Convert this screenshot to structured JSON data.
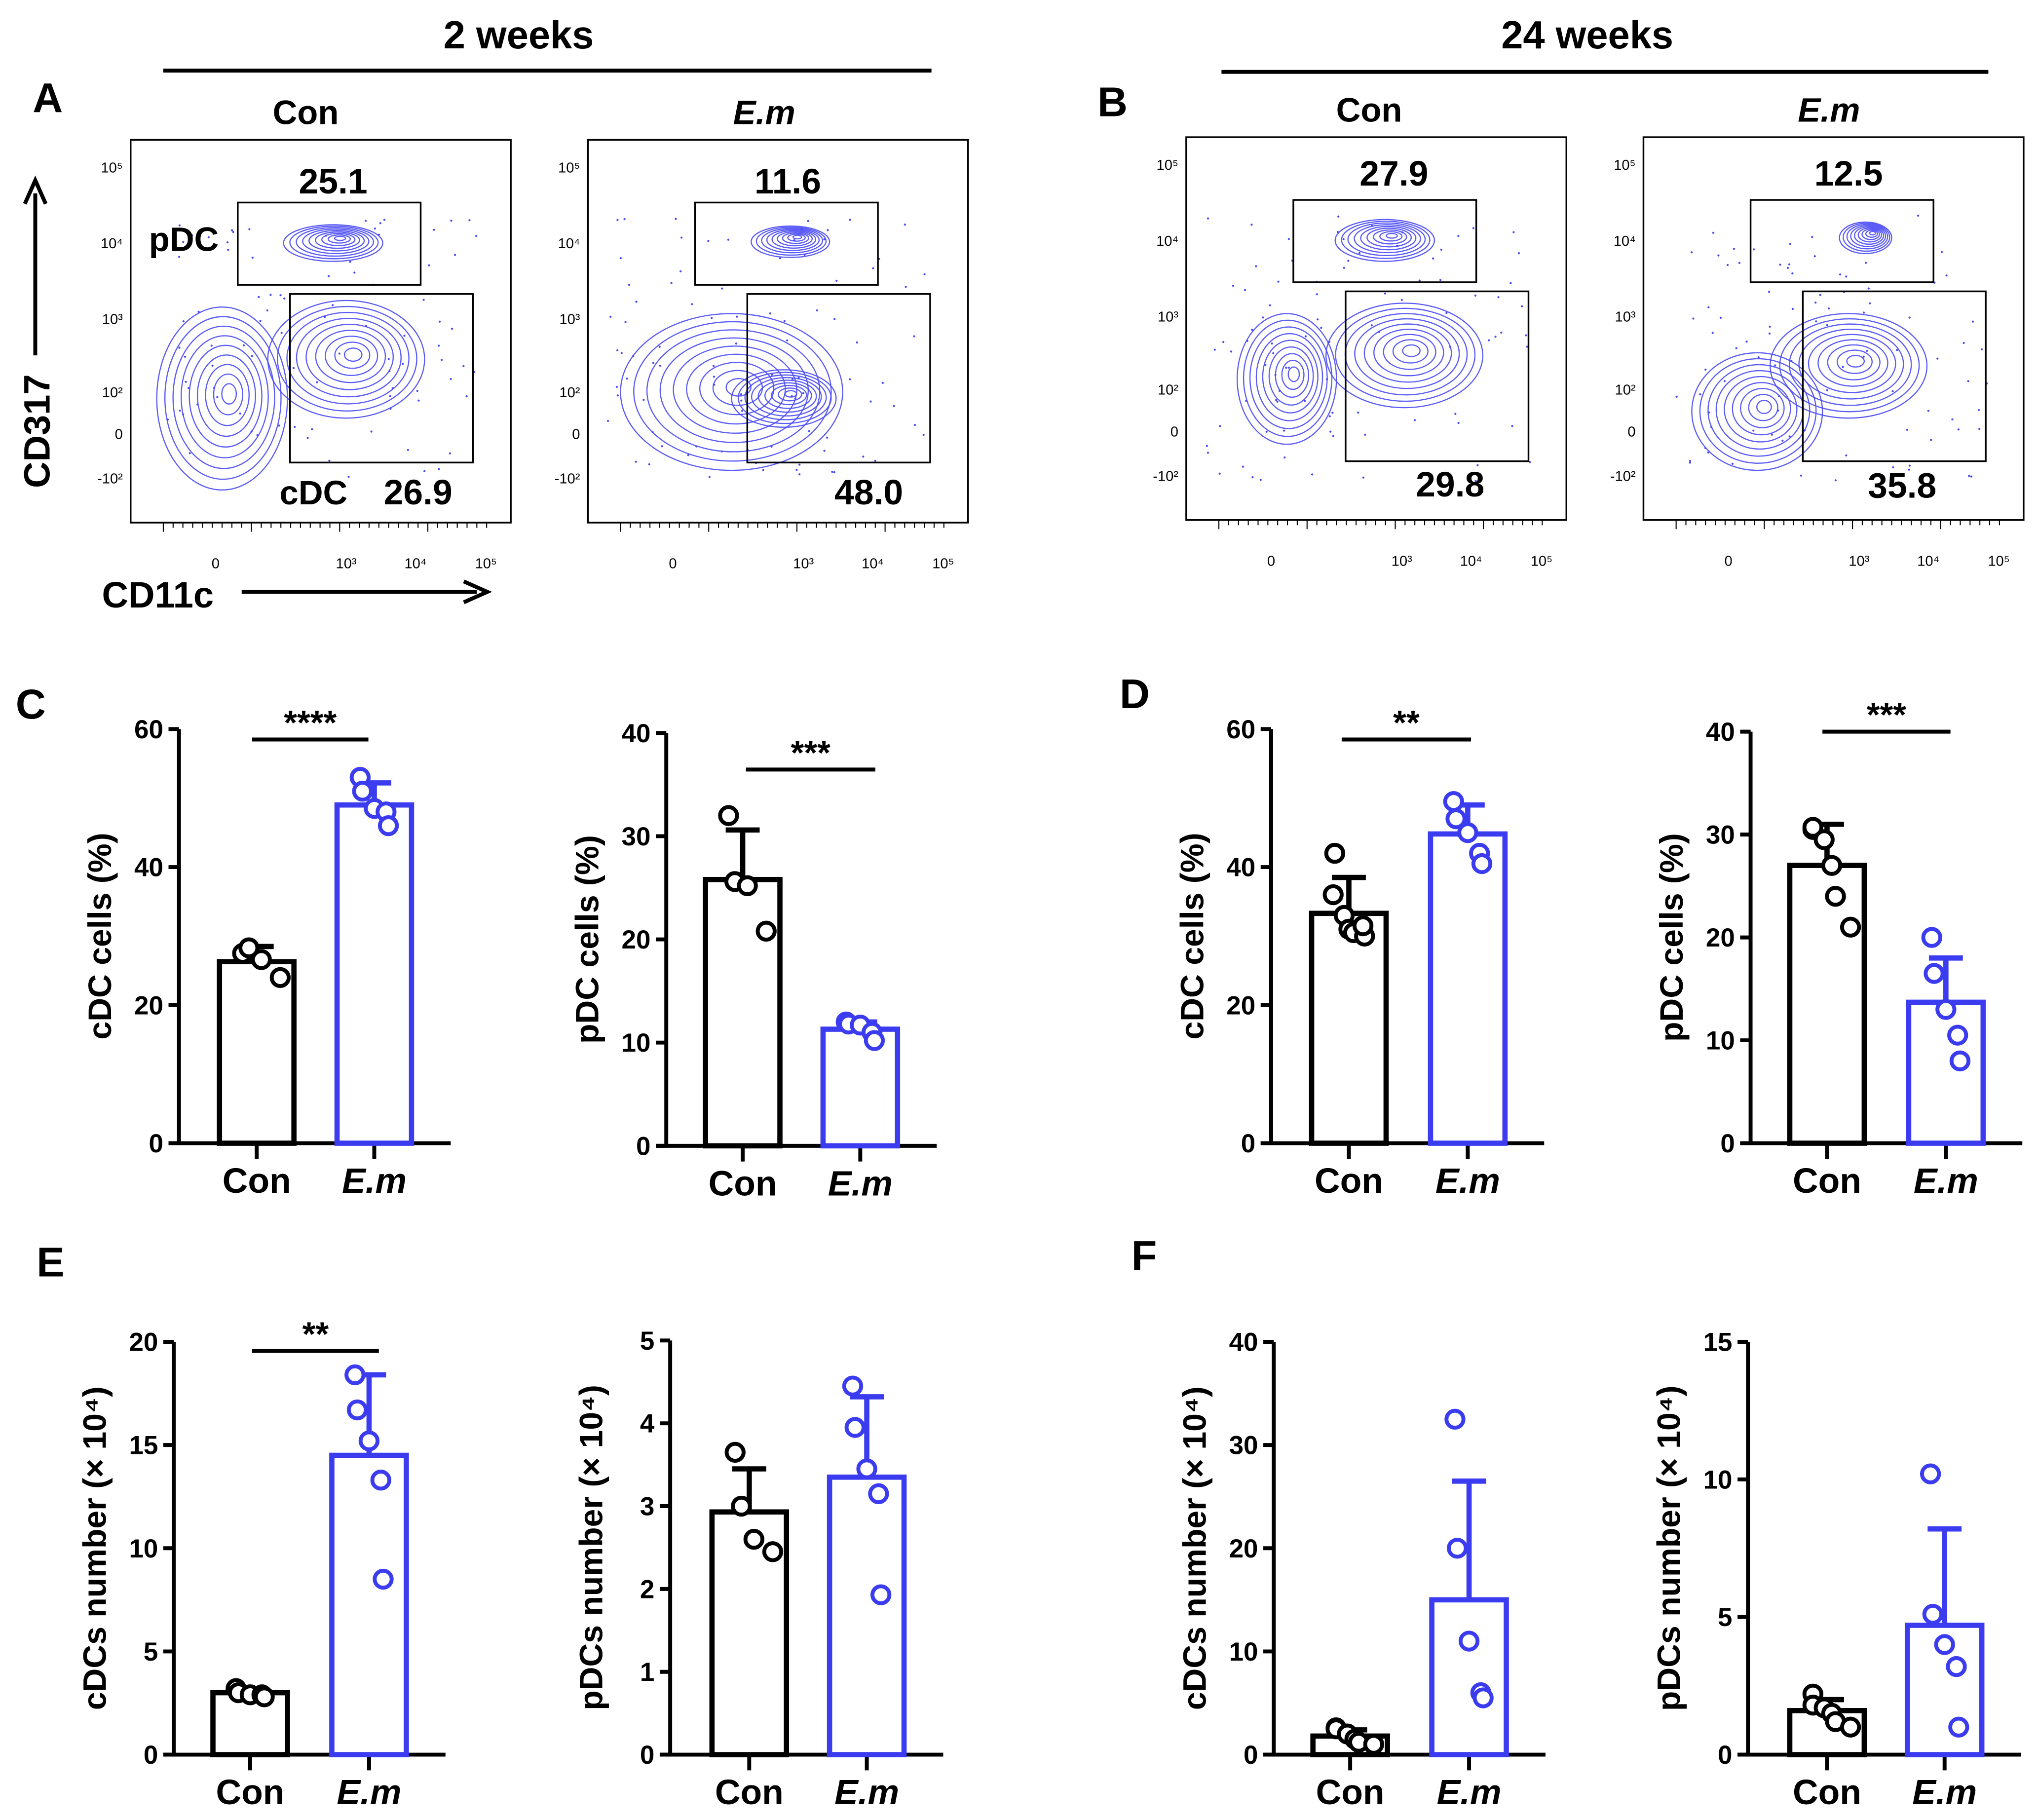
{
  "colors": {
    "con": "#000000",
    "em": "#3b3bf0",
    "contour": "#4a4af5"
  },
  "header": {
    "left_title": "2 weeks",
    "right_title": "24 weeks"
  },
  "panel_letters": [
    "A",
    "B",
    "C",
    "D",
    "E",
    "F"
  ],
  "flow": {
    "y_axis_label": "CD317",
    "x_axis_label": "CD11c",
    "y_ticks": [
      "10⁵",
      "10⁴",
      "10³",
      "10²",
      "0",
      "-10²"
    ],
    "x_ticks": [
      "0",
      "10³",
      "10⁴",
      "10⁵"
    ],
    "gate_labels": {
      "pdc": "pDC",
      "cdc": "cDC"
    },
    "plots": [
      {
        "group": "Con",
        "pdc_pct": "25.1",
        "cdc_pct": "26.9"
      },
      {
        "group": "E.m",
        "pdc_pct": "11.6",
        "cdc_pct": "48.0"
      },
      {
        "group": "Con",
        "pdc_pct": "27.9",
        "cdc_pct": "29.8"
      },
      {
        "group": "E.m",
        "pdc_pct": "12.5",
        "cdc_pct": "35.8"
      }
    ]
  },
  "chart_data": [
    {
      "type": "bar",
      "panel": "C",
      "title": "",
      "ylabel": "cDC cells (%)",
      "categories": [
        "Con",
        "E.m"
      ],
      "ylim": [
        0,
        60
      ],
      "yticks": [
        "0",
        "20",
        "40",
        "60"
      ],
      "significance": "****",
      "series": [
        {
          "name": "Con",
          "mean": 26.3,
          "sd": 2.2,
          "points": [
            27.5,
            28.3,
            26.6,
            24.0
          ]
        },
        {
          "name": "E.m",
          "mean": 49.0,
          "sd": 3.2,
          "points": [
            53.0,
            51.0,
            48.5,
            48.0,
            46.0
          ]
        }
      ]
    },
    {
      "type": "bar",
      "panel": "C",
      "title": "",
      "ylabel": "pDC cells (%)",
      "categories": [
        "Con",
        "E.m"
      ],
      "ylim": [
        0,
        40
      ],
      "yticks": [
        "0",
        "10",
        "20",
        "30",
        "40"
      ],
      "significance": "***",
      "series": [
        {
          "name": "Con",
          "mean": 25.8,
          "sd": 4.8,
          "points": [
            32.0,
            25.6,
            25.2,
            20.8
          ]
        },
        {
          "name": "E.m",
          "mean": 11.3,
          "sd": 0.7,
          "points": [
            12.0,
            11.8,
            11.7,
            11.0,
            10.2
          ]
        }
      ]
    },
    {
      "type": "bar",
      "panel": "D",
      "title": "",
      "ylabel": "cDC cells (%)",
      "categories": [
        "Con",
        "E.m"
      ],
      "ylim": [
        0,
        60
      ],
      "yticks": [
        "0",
        "20",
        "40",
        "60"
      ],
      "significance": "**",
      "series": [
        {
          "name": "Con",
          "mean": 33.3,
          "sd": 5.2,
          "points": [
            42.0,
            36.0,
            33.0,
            31.0,
            30.5,
            30.0,
            31.5
          ]
        },
        {
          "name": "E.m",
          "mean": 44.8,
          "sd": 4.2,
          "points": [
            49.5,
            47.0,
            45.0,
            42.0,
            40.5
          ]
        }
      ]
    },
    {
      "type": "bar",
      "panel": "D",
      "title": "",
      "ylabel": "pDC cells (%)",
      "categories": [
        "Con",
        "E.m"
      ],
      "ylim": [
        0,
        40
      ],
      "yticks": [
        "0",
        "10",
        "20",
        "30",
        "40"
      ],
      "significance": "***",
      "series": [
        {
          "name": "Con",
          "mean": 27.0,
          "sd": 4.0,
          "points": [
            30.5,
            30.7,
            29.5,
            27.0,
            24.0,
            21.0
          ]
        },
        {
          "name": "E.m",
          "mean": 13.7,
          "sd": 4.3,
          "points": [
            20.0,
            16.5,
            13.0,
            10.5,
            8.0
          ]
        }
      ]
    },
    {
      "type": "bar",
      "panel": "E",
      "title": "",
      "ylabel": "cDCs number (× 10⁴)",
      "categories": [
        "Con",
        "E.m"
      ],
      "ylim": [
        0,
        20
      ],
      "yticks": [
        "0",
        "5",
        "10",
        "15",
        "20"
      ],
      "significance": "**",
      "series": [
        {
          "name": "Con",
          "mean": 3.0,
          "sd": 0.15,
          "points": [
            3.2,
            3.0,
            2.9,
            2.9,
            2.8
          ]
        },
        {
          "name": "E.m",
          "mean": 14.5,
          "sd": 3.9,
          "points": [
            18.4,
            16.7,
            15.2,
            13.3,
            8.5
          ]
        }
      ]
    },
    {
      "type": "bar",
      "panel": "E",
      "title": "",
      "ylabel": "pDCs number (× 10⁴)",
      "categories": [
        "Con",
        "E.m"
      ],
      "ylim": [
        0,
        5
      ],
      "yticks": [
        "0",
        "1",
        "2",
        "3",
        "4",
        "5"
      ],
      "significance": "",
      "series": [
        {
          "name": "Con",
          "mean": 2.93,
          "sd": 0.52,
          "points": [
            3.65,
            3.0,
            2.6,
            2.45
          ]
        },
        {
          "name": "E.m",
          "mean": 3.35,
          "sd": 0.97,
          "points": [
            4.45,
            3.95,
            3.45,
            3.15,
            1.93
          ]
        }
      ]
    },
    {
      "type": "bar",
      "panel": "F",
      "title": "",
      "ylabel": "cDCs number (× 10⁴)",
      "categories": [
        "Con",
        "E.m"
      ],
      "ylim": [
        0,
        40
      ],
      "yticks": [
        "0",
        "10",
        "20",
        "30",
        "40"
      ],
      "significance": "",
      "series": [
        {
          "name": "Con",
          "mean": 1.8,
          "sd": 0.6,
          "points": [
            2.6,
            2.5,
            2.0,
            1.5,
            1.2,
            1.0
          ]
        },
        {
          "name": "E.m",
          "mean": 15.0,
          "sd": 11.5,
          "points": [
            32.5,
            20.0,
            11.0,
            6.0,
            5.5
          ]
        }
      ]
    },
    {
      "type": "bar",
      "panel": "F",
      "title": "",
      "ylabel": "pDCs number (× 10⁴)",
      "categories": [
        "Con",
        "E.m"
      ],
      "ylim": [
        0,
        15
      ],
      "yticks": [
        "0",
        "5",
        "10",
        "15"
      ],
      "significance": "",
      "series": [
        {
          "name": "Con",
          "mean": 1.6,
          "sd": 0.4,
          "points": [
            2.2,
            1.8,
            1.7,
            1.5,
            1.2,
            1.0
          ]
        },
        {
          "name": "E.m",
          "mean": 4.7,
          "sd": 3.5,
          "points": [
            10.2,
            5.1,
            4.0,
            3.2,
            1.0
          ]
        }
      ]
    }
  ]
}
